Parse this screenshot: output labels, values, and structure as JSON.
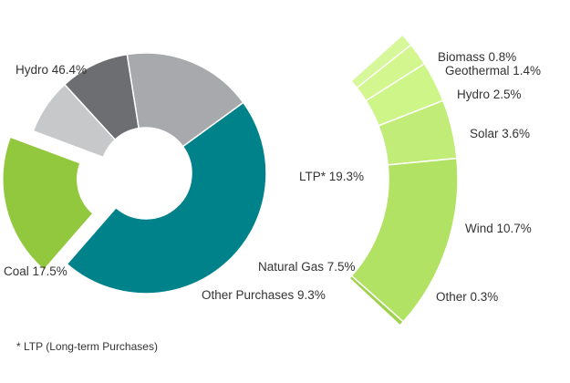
{
  "footnote": "* LTP (Long-term Purchases)",
  "chart_data": [
    {
      "type": "pie",
      "variant": "donut",
      "series": [
        {
          "name": "Hydro",
          "label": "Hydro 46.4%",
          "value": 46.4,
          "color": "#00828A"
        },
        {
          "name": "LTP*",
          "label": "LTP* 19.3%",
          "value": 19.3,
          "color": "#92C83E",
          "exploded": true
        },
        {
          "name": "Natural Gas",
          "label": "Natural Gas 7.5%",
          "value": 7.5,
          "color": "#C7C8CA"
        },
        {
          "name": "Other Purchases",
          "label": "Other Purchases 9.3%",
          "value": 9.3,
          "color": "#6D6E71"
        },
        {
          "name": "Coal",
          "label": "Coal 17.5%",
          "value": 17.5,
          "color": "#A7A9AC"
        }
      ]
    },
    {
      "type": "pie",
      "variant": "breakdown-arc",
      "parent": "LTP*",
      "series": [
        {
          "name": "Biomass",
          "label": "Biomass 0.8%",
          "value": 0.8,
          "color": "#D6F79A"
        },
        {
          "name": "Geothermal",
          "label": "Geothermal 1.4%",
          "value": 1.4,
          "color": "#D3F68E"
        },
        {
          "name": "Hydro",
          "label": "Hydro 2.5%",
          "value": 2.5,
          "color": "#CDF587"
        },
        {
          "name": "Solar",
          "label": "Solar 3.6%",
          "value": 3.6,
          "color": "#C1EC78"
        },
        {
          "name": "Wind",
          "label": "Wind 10.7%",
          "value": 10.7,
          "color": "#B2E264"
        },
        {
          "name": "Other",
          "label": "Other 0.3%",
          "value": 0.3,
          "color": "#9ED24E"
        }
      ]
    }
  ]
}
